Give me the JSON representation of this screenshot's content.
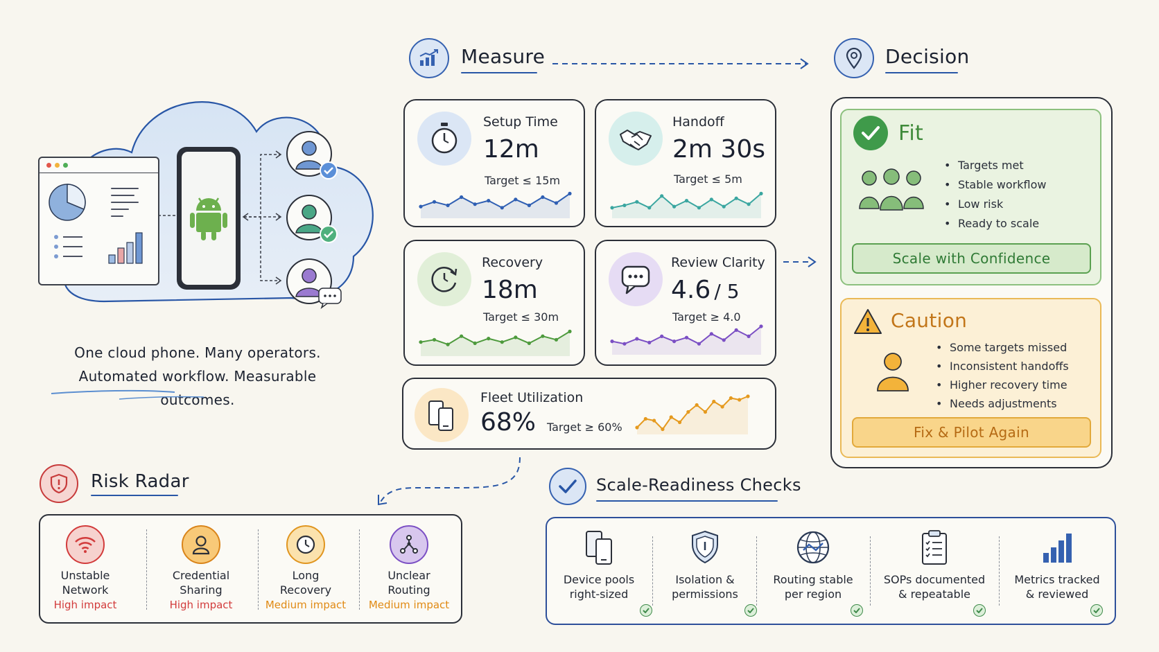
{
  "hero": {
    "caption_line1": "One cloud phone. Many operators.",
    "caption_line2": "Automated workflow. Measurable outcomes."
  },
  "measure": {
    "title": "Measure",
    "metrics": [
      {
        "label": "Setup Time",
        "value": "12m",
        "target": "Target ≤ 15m",
        "color": "#2f5fb3",
        "icon": "stopwatch-icon",
        "spark": [
          0.35,
          0.55,
          0.4,
          0.75,
          0.45,
          0.6,
          0.3,
          0.65,
          0.4,
          0.75,
          0.5,
          0.9
        ]
      },
      {
        "label": "Handoff",
        "value": "2m 30s",
        "target": "Target ≤ 5m",
        "color": "#3aa6a0",
        "icon": "handshake-icon",
        "spark": [
          0.3,
          0.4,
          0.55,
          0.3,
          0.8,
          0.35,
          0.6,
          0.3,
          0.65,
          0.35,
          0.7,
          0.45,
          0.9
        ]
      },
      {
        "label": "Recovery",
        "value": "18m",
        "target": "Target ≤ 30m",
        "color": "#4d9a3c",
        "icon": "refresh-clock-icon",
        "spark": [
          0.45,
          0.55,
          0.35,
          0.7,
          0.4,
          0.6,
          0.45,
          0.65,
          0.4,
          0.7,
          0.55,
          0.9
        ]
      },
      {
        "label": "Review Clarity",
        "value": "4.6",
        "value_suffix": "/ 5",
        "target": "Target ≥ 4.0",
        "color": "#7b4fc4",
        "icon": "chat-bubble-icon",
        "spark": [
          0.4,
          0.3,
          0.5,
          0.35,
          0.6,
          0.4,
          0.55,
          0.3,
          0.7,
          0.45,
          0.85,
          0.6,
          1.0
        ]
      },
      {
        "label": "Fleet Utilization",
        "value": "68%",
        "target": "Target ≥ 60%",
        "color": "#e59a1f",
        "icon": "devices-icon",
        "spark": [
          0.1,
          0.35,
          0.3,
          0.05,
          0.4,
          0.25,
          0.55,
          0.75,
          0.55,
          0.85,
          0.7,
          0.95,
          0.9,
          1.0
        ]
      }
    ]
  },
  "decision": {
    "title": "Decision",
    "fit": {
      "title": "Fit",
      "items": [
        "Targets met",
        "Stable workflow",
        "Low risk",
        "Ready to scale"
      ],
      "button": "Scale with Confidence"
    },
    "caution": {
      "title": "Caution",
      "items": [
        "Some targets missed",
        "Inconsistent handoffs",
        "Higher recovery time",
        "Needs adjustments"
      ],
      "button": "Fix & Pilot Again"
    }
  },
  "risk": {
    "title": "Risk Radar",
    "items": [
      {
        "name_line1": "Unstable",
        "name_line2": "Network",
        "impact": "High impact",
        "color": "#d23b3b",
        "icon": "wifi-icon"
      },
      {
        "name_line1": "Credential",
        "name_line2": "Sharing",
        "impact": "High impact",
        "color": "#d23b3b",
        "icon": "user-icon"
      },
      {
        "name_line1": "Long",
        "name_line2": "Recovery",
        "impact": "Medium impact",
        "color": "#e08a14",
        "icon": "clock-icon"
      },
      {
        "name_line1": "Unclear",
        "name_line2": "Routing",
        "impact": "Medium impact",
        "color": "#e08a14",
        "icon": "routing-icon"
      }
    ]
  },
  "checks": {
    "title": "Scale-Readiness Checks",
    "items": [
      {
        "line1": "Device pools",
        "line2": "right-sized",
        "icon": "devices-icon"
      },
      {
        "line1": "Isolation &",
        "line2": "permissions",
        "icon": "shield-icon"
      },
      {
        "line1": "Routing stable",
        "line2": "per region",
        "icon": "globe-icon"
      },
      {
        "line1": "SOPs documented",
        "line2": "& repeatable",
        "icon": "clipboard-icon"
      },
      {
        "line1": "Metrics tracked",
        "line2": "& reviewed",
        "icon": "bar-chart-icon"
      }
    ]
  }
}
